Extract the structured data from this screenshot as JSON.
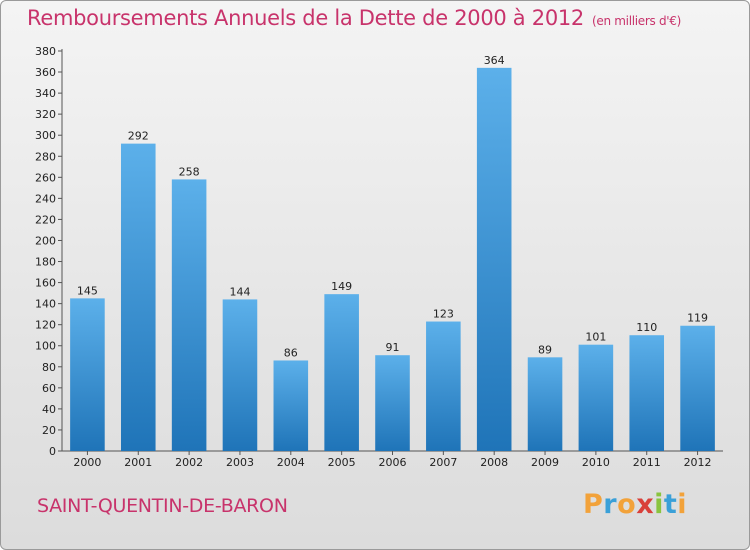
{
  "header": {
    "title": "Remboursements Annuels de la Dette de 2000 à 2012",
    "unit": "(en milliers d'€)"
  },
  "footer": {
    "commune": "SAINT-QUENTIN-DE-BARON",
    "logo_letters": [
      {
        "ch": "P",
        "color": "#f2a23a"
      },
      {
        "ch": "r",
        "color": "#3aa0d8"
      },
      {
        "ch": "o",
        "color": "#f2a23a"
      },
      {
        "ch": "x",
        "color": "#d9403a"
      },
      {
        "ch": "i",
        "color": "#8ac43f"
      },
      {
        "ch": "t",
        "color": "#3aa0d8"
      },
      {
        "ch": "i",
        "color": "#f2a23a"
      }
    ]
  },
  "colors": {
    "title": "#c8336b",
    "bar_top": "#5cb0ea",
    "bar_bottom": "#1f74b8"
  },
  "chart_data": {
    "type": "bar",
    "categories": [
      "2000",
      "2001",
      "2002",
      "2003",
      "2004",
      "2005",
      "2006",
      "2007",
      "2008",
      "2009",
      "2010",
      "2011",
      "2012"
    ],
    "values": [
      145,
      292,
      258,
      144,
      86,
      149,
      91,
      123,
      364,
      89,
      101,
      110,
      119
    ],
    "title": "Remboursements Annuels de la Dette de 2000 à 2012",
    "xlabel": "",
    "ylabel": "",
    "ylim": [
      0,
      380
    ],
    "yticks": [
      0,
      20,
      40,
      60,
      80,
      100,
      120,
      140,
      160,
      180,
      200,
      220,
      240,
      260,
      280,
      300,
      320,
      340,
      360,
      380
    ],
    "grid": false,
    "data_labels": true
  }
}
